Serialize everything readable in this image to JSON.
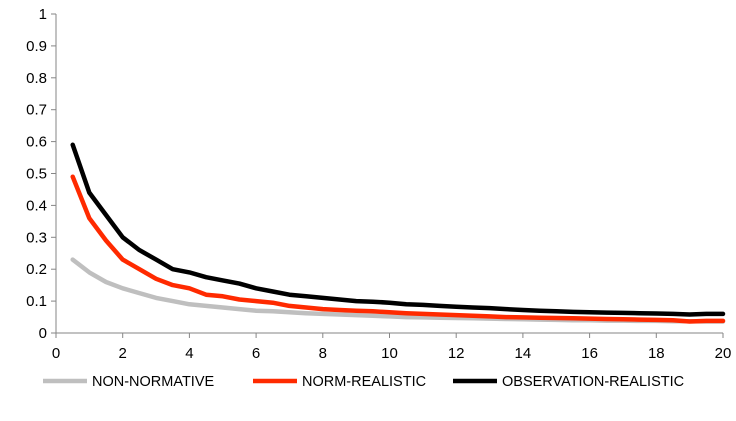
{
  "chart_data": {
    "type": "line",
    "title": "",
    "xlabel": "",
    "ylabel": "",
    "xlim": [
      0,
      20
    ],
    "ylim": [
      0,
      1
    ],
    "x_ticks": [
      0,
      2,
      4,
      6,
      8,
      10,
      12,
      14,
      16,
      18,
      20
    ],
    "y_ticks": [
      "0",
      "0.1",
      "0.2",
      "0.3",
      "0.4",
      "0.5",
      "0.6",
      "0.7",
      "0.8",
      "0.9",
      "1"
    ],
    "grid": false,
    "legend_position": "bottom",
    "x": [
      0.5,
      1,
      1.5,
      2,
      2.5,
      3,
      3.5,
      4,
      4.5,
      5,
      5.5,
      6,
      6.5,
      7,
      7.5,
      8,
      8.5,
      9,
      9.5,
      10,
      10.5,
      11,
      11.5,
      12,
      12.5,
      13,
      13.5,
      14,
      14.5,
      15,
      15.5,
      16,
      16.5,
      17,
      17.5,
      18,
      18.5,
      19,
      19.5,
      20
    ],
    "series": [
      {
        "name": "NON-NORMATIVE",
        "color": "#bfbfbf",
        "values": [
          0.23,
          0.19,
          0.16,
          0.14,
          0.125,
          0.11,
          0.1,
          0.09,
          0.085,
          0.08,
          0.075,
          0.07,
          0.068,
          0.065,
          0.062,
          0.06,
          0.058,
          0.056,
          0.054,
          0.052,
          0.05,
          0.049,
          0.048,
          0.047,
          0.046,
          0.045,
          0.044,
          0.043,
          0.042,
          0.041,
          0.04,
          0.04,
          0.039,
          0.039,
          0.038,
          0.038,
          0.037,
          0.037,
          0.036,
          0.036
        ]
      },
      {
        "name": "NORM-REALISTIC",
        "color": "#ff2a00",
        "values": [
          0.49,
          0.36,
          0.29,
          0.23,
          0.2,
          0.17,
          0.15,
          0.14,
          0.12,
          0.115,
          0.105,
          0.1,
          0.095,
          0.085,
          0.08,
          0.075,
          0.072,
          0.07,
          0.068,
          0.065,
          0.062,
          0.06,
          0.058,
          0.056,
          0.054,
          0.052,
          0.05,
          0.049,
          0.048,
          0.047,
          0.046,
          0.045,
          0.044,
          0.043,
          0.042,
          0.041,
          0.04,
          0.036,
          0.038,
          0.038
        ]
      },
      {
        "name": "OBSERVATION-REALISTIC",
        "color": "#000000",
        "values": [
          0.59,
          0.44,
          0.37,
          0.3,
          0.26,
          0.23,
          0.2,
          0.19,
          0.175,
          0.165,
          0.155,
          0.14,
          0.13,
          0.12,
          0.115,
          0.11,
          0.105,
          0.1,
          0.098,
          0.095,
          0.09,
          0.088,
          0.085,
          0.082,
          0.08,
          0.078,
          0.075,
          0.072,
          0.07,
          0.068,
          0.066,
          0.065,
          0.064,
          0.063,
          0.062,
          0.061,
          0.06,
          0.058,
          0.06,
          0.06
        ]
      }
    ]
  }
}
